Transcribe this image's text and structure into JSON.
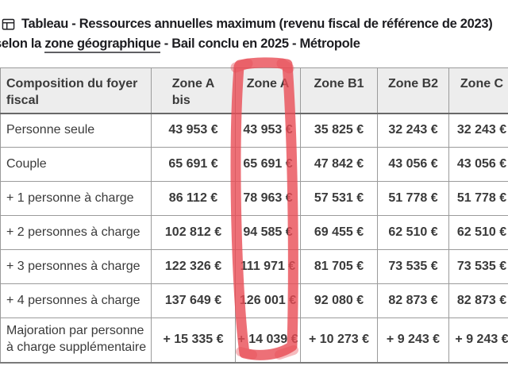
{
  "title": {
    "icon": "table-icon",
    "line1": "Tableau - Ressources annuelles maximum (revenu fiscal de référence de 2023)",
    "line2_prefix": "selon la ",
    "line2_link": "zone géographique",
    "line2_suffix": " - Bail conclu en 2025 - Métropole"
  },
  "table": {
    "column_headers": [
      "Composition du foyer\nfiscal",
      "Zone A\nbis",
      "Zone A",
      "Zone B1",
      "Zone B2",
      "Zone C"
    ],
    "rows": [
      {
        "label": "Personne seule",
        "values": [
          "43 953 €",
          "43 953 €",
          "35 825 €",
          "32 243 €",
          "32 243 €"
        ]
      },
      {
        "label": "Couple",
        "values": [
          "65 691 €",
          "65 691 €",
          "47 842 €",
          "43 056 €",
          "43 056 €"
        ]
      },
      {
        "label": "+ 1 personne à charge",
        "values": [
          "86 112 €",
          "78 963 €",
          "57 531 €",
          "51 778 €",
          "51 778 €"
        ]
      },
      {
        "label": "+ 2 personnes à charge",
        "values": [
          "102 812 €",
          "94 585 €",
          "69 455 €",
          "62 510 €",
          "62 510 €"
        ]
      },
      {
        "label": "+ 3 personnes à charge",
        "values": [
          "122 326 €",
          "111 971 €",
          "81 705 €",
          "73 535 €",
          "73 535 €"
        ]
      },
      {
        "label": "+ 4 personnes à charge",
        "values": [
          "137 649 €",
          "126 001 €",
          "92 080 €",
          "82 873 €",
          "82 873 €"
        ]
      },
      {
        "label": "Majoration par personne\nà charge supplémentaire",
        "values": [
          "+ 15 335 €",
          "+ 14 039 €",
          "+ 10 273 €",
          "+ 9 243 €",
          "+ 9 243 €"
        ]
      }
    ]
  },
  "annotation": {
    "shape": "hand-drawn-marker-rectangle",
    "highlighted_column": "Zone A",
    "color": "#e84c55"
  },
  "colors": {
    "header_bg": "#ededed",
    "border": "#9b9b9b",
    "header_bottom_border": "#686868",
    "text": "#3a3a3a",
    "title_text": "#1d1d21",
    "marker": "#e84c55"
  }
}
